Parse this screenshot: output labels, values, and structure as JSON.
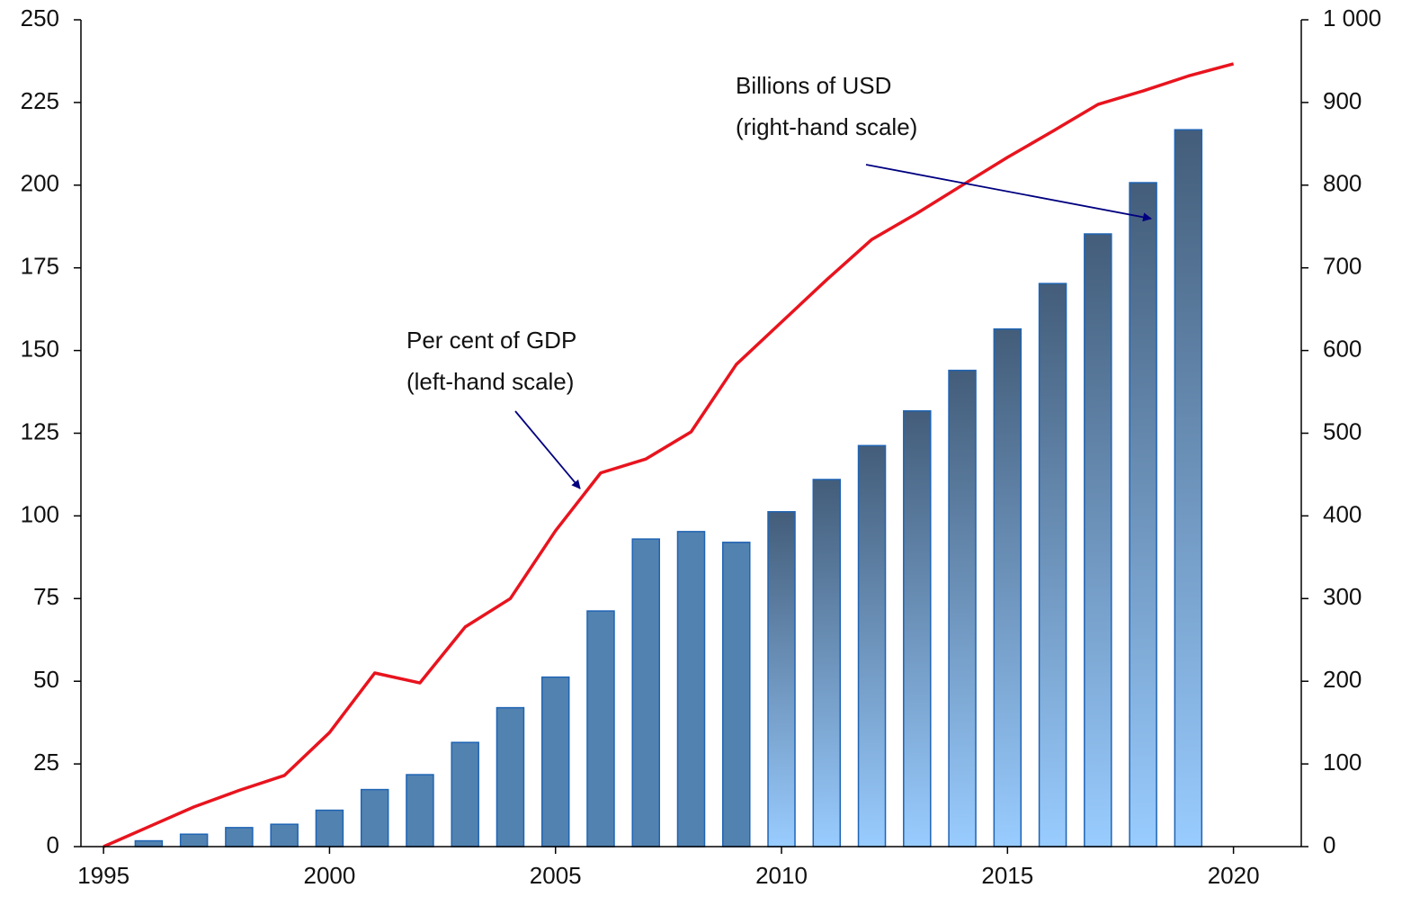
{
  "chart_data": {
    "type": "bar_line",
    "xlim": [
      1994.5,
      2021.5
    ],
    "xticks": [
      1995,
      2000,
      2005,
      2010,
      2015,
      2020
    ],
    "ylim": [
      0,
      250
    ],
    "yticks": [
      0,
      25,
      50,
      75,
      100,
      125,
      150,
      175,
      200,
      225,
      250
    ],
    "y2lim": [
      0,
      1000
    ],
    "y2ticks": [
      0,
      100,
      200,
      300,
      400,
      500,
      600,
      700,
      800,
      900,
      {
        "value": 1000,
        "label": "1 000"
      }
    ],
    "series": [
      {
        "type": "bar",
        "axis": "y2",
        "color": "#5282b0",
        "edge_color": "#1f64b4",
        "projection_fill": {
          "from_x": 2010,
          "top": "#435d7a",
          "bottom": "#99ccff"
        },
        "x": [
          1996,
          1997,
          1998,
          1999,
          2000,
          2001,
          2002,
          2003,
          2004,
          2005,
          2006,
          2007,
          2008,
          2009,
          2010,
          2011,
          2012,
          2013,
          2014,
          2015,
          2016,
          2017,
          2018,
          2019
        ],
        "values": [
          7,
          15,
          23,
          27,
          44,
          69,
          87,
          126,
          168,
          205,
          285,
          372,
          381,
          368,
          405,
          444,
          485,
          527,
          576,
          626,
          681,
          741,
          803,
          867
        ]
      },
      {
        "type": "line",
        "axis": "y",
        "color": "#e8141e",
        "x": [
          1995,
          1996,
          1997,
          1998,
          1999,
          2000,
          2001,
          2002,
          2003,
          2004,
          2005,
          2006,
          2007,
          2008,
          2009,
          2010,
          2011,
          2012,
          2013,
          2014,
          2015,
          2016,
          2017,
          2018,
          2019,
          2020
        ],
        "values": [
          0,
          6,
          12,
          17,
          21.5,
          34.5,
          52.5,
          49.5,
          66.4,
          75,
          95.5,
          113,
          117.2,
          125.4,
          145.8,
          158.6,
          171.4,
          183.6,
          191.5,
          200,
          208.4,
          216.3,
          224.4,
          228.5,
          233,
          236.7
        ]
      }
    ],
    "annotations": [
      {
        "lines": [
          "Per cent of GDP",
          "(left-hand scale)"
        ]
      },
      {
        "lines": [
          "Billions of USD",
          "(right-hand scale)"
        ]
      }
    ]
  }
}
